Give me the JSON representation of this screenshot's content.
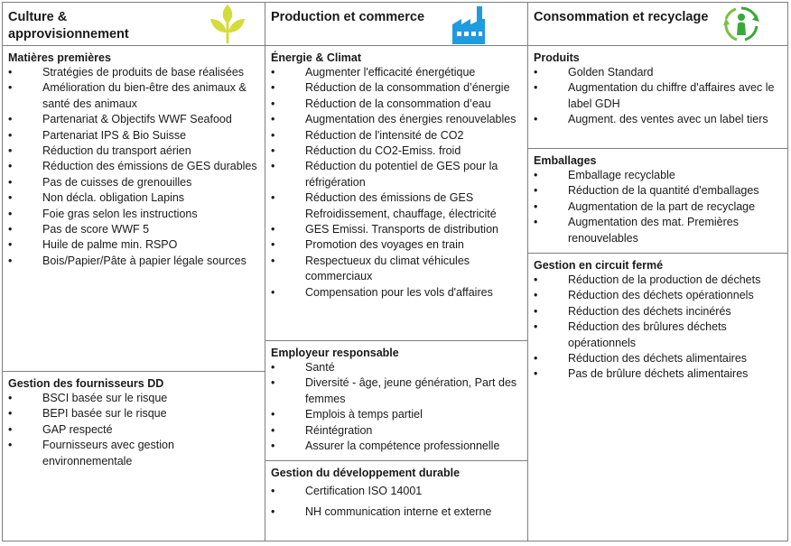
{
  "columns": [
    {
      "title_lines": [
        "Culture &",
        "approvisionnement"
      ],
      "icon": "leaves-icon",
      "icon_color": "#d4dc3c",
      "sections": [
        {
          "heading": "Matières premières",
          "items": [
            "Stratégies de produits de base réalisées",
            "Amélioration du bien-être des animaux & santé des animaux",
            "Partenariat & Objectifs WWF Seafood",
            "Partenariat IPS & Bio Suisse",
            "Réduction du transport aérien",
            "Réduction des émissions de GES durables",
            "Pas de cuisses de grenouilles",
            "Non décla. obligation Lapins",
            "Foie gras selon les instructions",
            "Pas de score WWF 5",
            "Huile de palme min. RSPO",
            "Bois/Papier/Pâte à papier légale sources"
          ]
        },
        {
          "heading": "Gestion des fournisseurs DD",
          "items": [
            "BSCI basée sur le risque",
            "BEPI basée sur le risque",
            "GAP respecté",
            "Fournisseurs avec gestion environnementale"
          ]
        }
      ]
    },
    {
      "title_lines": [
        "Production  et commerce"
      ],
      "icon": "factory-icon",
      "icon_color": "#1f9be0",
      "sections": [
        {
          "heading": "Énergie & Climat",
          "items": [
            "Augmenter l'efficacité énergétique",
            "Réduction de la consommation d’énergie",
            "Réduction de la consommation d’eau",
            "Augmentation des énergies renouvelables",
            "Réduction de l'intensité de CO2",
            "Réduction du CO2-Emiss. froid",
            "Réduction du potentiel de GES pour la réfrigération",
            "Réduction des émissions de GES Refroidissement, chauffage, électricité",
            "GES Emissi. Transports de distribution",
            "Promotion des voyages en train",
            "Respectueux du climat véhicules commerciaux",
            "Compensation pour les vols d'affaires"
          ]
        },
        {
          "heading": "Employeur responsable",
          "items": [
            "Santé",
            "Diversité - âge, jeune génération, Part des femmes",
            "Emplois à temps partiel",
            "Réintégration",
            "Assurer la compétence professionnelle"
          ]
        },
        {
          "heading": "Gestion du développement durable",
          "items": [
            "Certification ISO 14001",
            "NH communication interne et externe"
          ]
        }
      ]
    },
    {
      "title_lines": [
        "Consommation  et recyclage"
      ],
      "icon": "recycle-person-icon",
      "icon_color": "#3aa93a",
      "sections": [
        {
          "heading": "Produits",
          "items": [
            "Golden Standard",
            "Augmentation du chiffre d'affaires avec le label GDH",
            "Augment. des ventes avec un label tiers"
          ]
        },
        {
          "heading": "Emballages",
          "items": [
            "Emballage recyclable",
            "Réduction de la quantité d'emballages",
            "Augmentation de la part de recyclage",
            "Augmentation des mat. Premières renouvelables"
          ]
        },
        {
          "heading": "Gestion en circuit fermé",
          "items": [
            "Réduction de la production de déchets",
            "Réduction des déchets opérationnels",
            "Réduction des déchets incinérés",
            "Réduction des brûlures déchets opérationnels",
            "Réduction des déchets alimentaires",
            "Pas de brûlure déchets alimentaires"
          ]
        }
      ]
    }
  ]
}
